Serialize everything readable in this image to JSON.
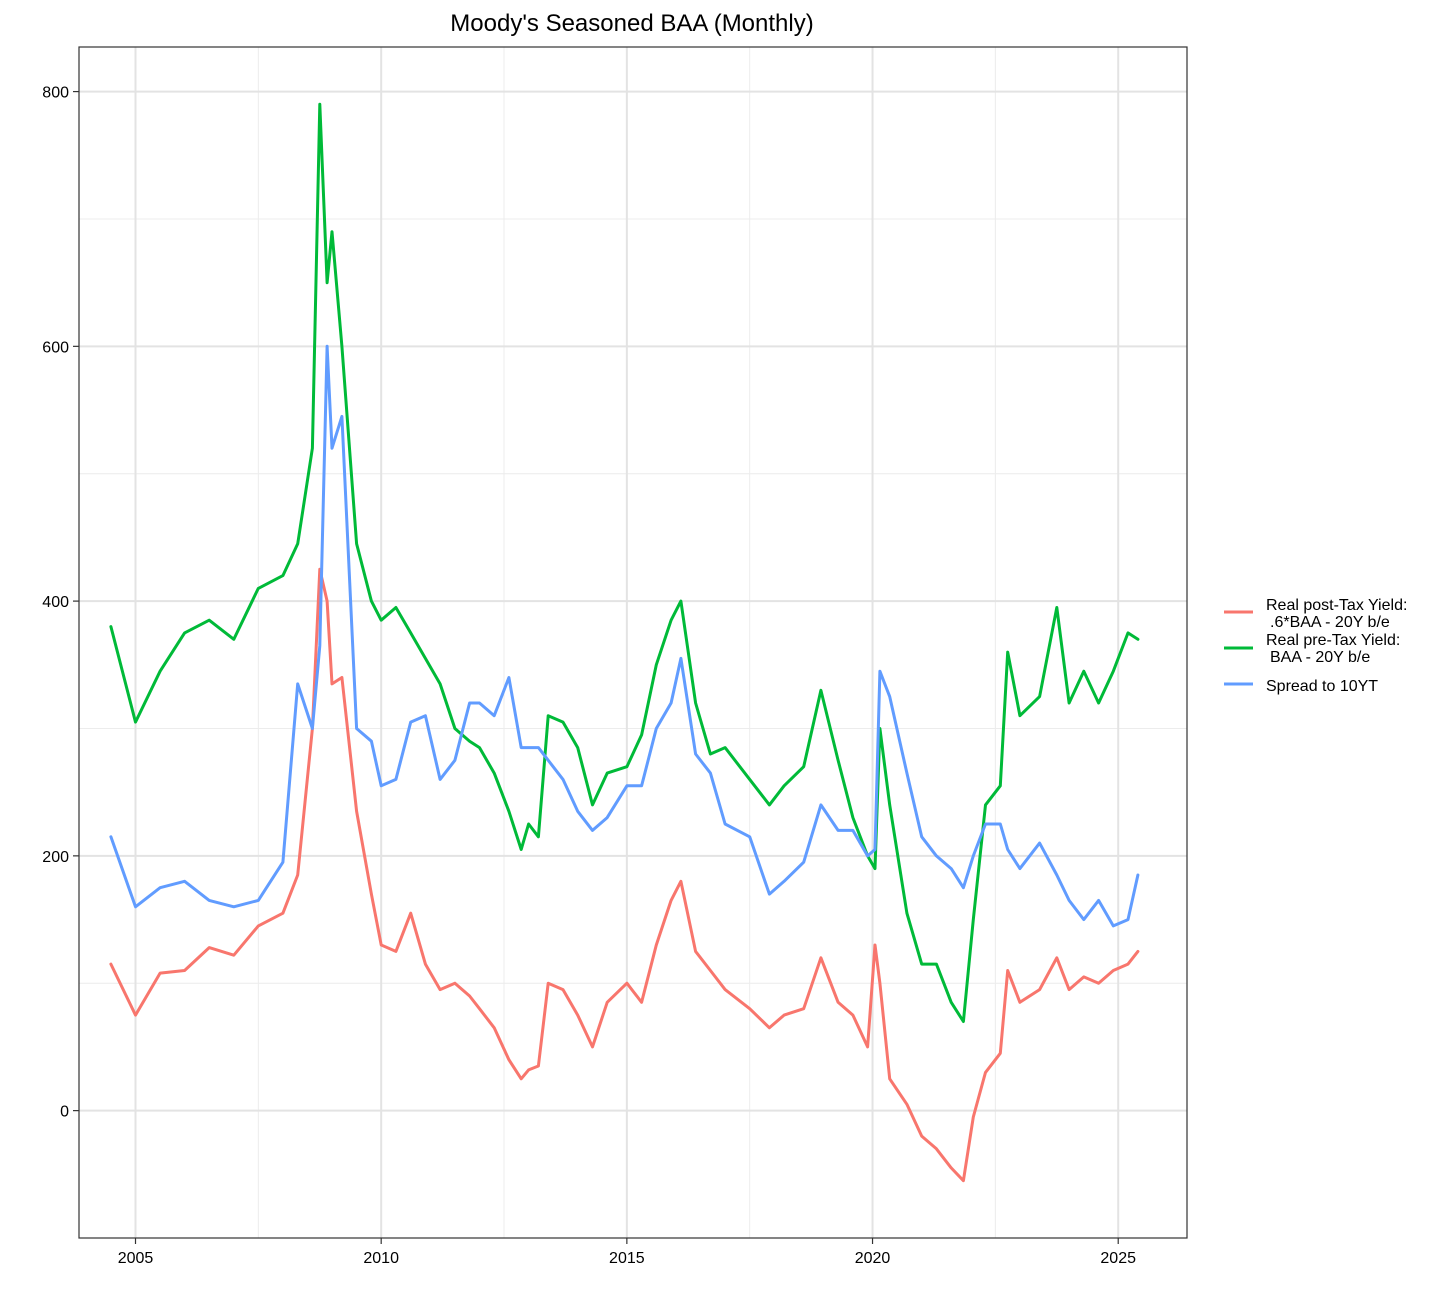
{
  "chart_data": {
    "type": "line",
    "title": "Moody's Seasoned BAA (Monthly)",
    "xlabel": "",
    "ylabel": "",
    "xlim": [
      2003.85,
      2026.4
    ],
    "ylim": [
      -100,
      835
    ],
    "x_ticks": [
      2005,
      2010,
      2015,
      2020,
      2025
    ],
    "x_tick_labels": [
      "2005",
      "2010",
      "2015",
      "2020",
      "2025"
    ],
    "y_ticks": [
      0,
      200,
      400,
      600,
      800
    ],
    "y_tick_labels": [
      "0",
      "200",
      "400",
      "600",
      "800"
    ],
    "grid": true,
    "legend_position": "right",
    "x": [
      2004.5,
      2005.0,
      2005.5,
      2006.0,
      2006.5,
      2007.0,
      2007.5,
      2008.0,
      2008.3,
      2008.6,
      2008.75,
      2008.9,
      2009.0,
      2009.2,
      2009.5,
      2009.8,
      2010.0,
      2010.3,
      2010.6,
      2010.9,
      2011.2,
      2011.5,
      2011.8,
      2012.0,
      2012.3,
      2012.6,
      2012.85,
      2013.0,
      2013.2,
      2013.4,
      2013.7,
      2014.0,
      2014.3,
      2014.6,
      2015.0,
      2015.3,
      2015.6,
      2015.9,
      2016.1,
      2016.4,
      2016.7,
      2017.0,
      2017.5,
      2017.9,
      2018.2,
      2018.6,
      2018.95,
      2019.3,
      2019.6,
      2019.9,
      2020.05,
      2020.15,
      2020.35,
      2020.7,
      2021.0,
      2021.3,
      2021.6,
      2021.85,
      2022.05,
      2022.3,
      2022.6,
      2022.75,
      2023.0,
      2023.4,
      2023.75,
      2024.0,
      2024.3,
      2024.6,
      2024.9,
      2025.2,
      2025.4
    ],
    "series": [
      {
        "name": "Real post-Tax Yield:\n.6*BAA - 20Y b/e",
        "color": "#F8766D",
        "values": [
          115,
          75,
          108,
          110,
          128,
          122,
          145,
          155,
          185,
          300,
          425,
          400,
          335,
          340,
          235,
          170,
          130,
          125,
          155,
          115,
          95,
          100,
          90,
          80,
          65,
          40,
          25,
          32,
          35,
          100,
          95,
          75,
          50,
          85,
          100,
          85,
          130,
          165,
          180,
          125,
          110,
          95,
          80,
          65,
          75,
          80,
          120,
          85,
          75,
          50,
          130,
          100,
          25,
          5,
          -20,
          -30,
          -45,
          -55,
          -5,
          30,
          45,
          110,
          85,
          95,
          120,
          95,
          105,
          100,
          110,
          115,
          125
        ]
      },
      {
        "name": "Real pre-Tax Yield:\nBAA - 20Y b/e",
        "color": "#00BA38",
        "values": [
          380,
          305,
          345,
          375,
          385,
          370,
          410,
          420,
          445,
          520,
          790,
          650,
          690,
          600,
          445,
          400,
          385,
          395,
          375,
          355,
          335,
          300,
          290,
          285,
          265,
          235,
          205,
          225,
          215,
          310,
          305,
          285,
          240,
          265,
          270,
          295,
          350,
          385,
          400,
          320,
          280,
          285,
          260,
          240,
          255,
          270,
          330,
          275,
          230,
          200,
          190,
          300,
          240,
          155,
          115,
          115,
          85,
          70,
          150,
          240,
          255,
          360,
          310,
          325,
          395,
          320,
          345,
          320,
          345,
          375,
          370
        ]
      },
      {
        "name": "Spread to 10YT",
        "color": "#619CFF",
        "values": [
          215,
          160,
          175,
          180,
          165,
          160,
          165,
          195,
          335,
          300,
          365,
          600,
          520,
          545,
          300,
          290,
          255,
          260,
          305,
          310,
          260,
          275,
          320,
          320,
          310,
          340,
          285,
          285,
          285,
          275,
          260,
          235,
          220,
          230,
          255,
          255,
          300,
          320,
          355,
          280,
          265,
          225,
          215,
          170,
          180,
          195,
          240,
          220,
          220,
          200,
          205,
          345,
          325,
          265,
          215,
          200,
          190,
          175,
          200,
          225,
          225,
          205,
          190,
          210,
          185,
          165,
          150,
          165,
          145,
          150,
          185
        ]
      }
    ]
  }
}
